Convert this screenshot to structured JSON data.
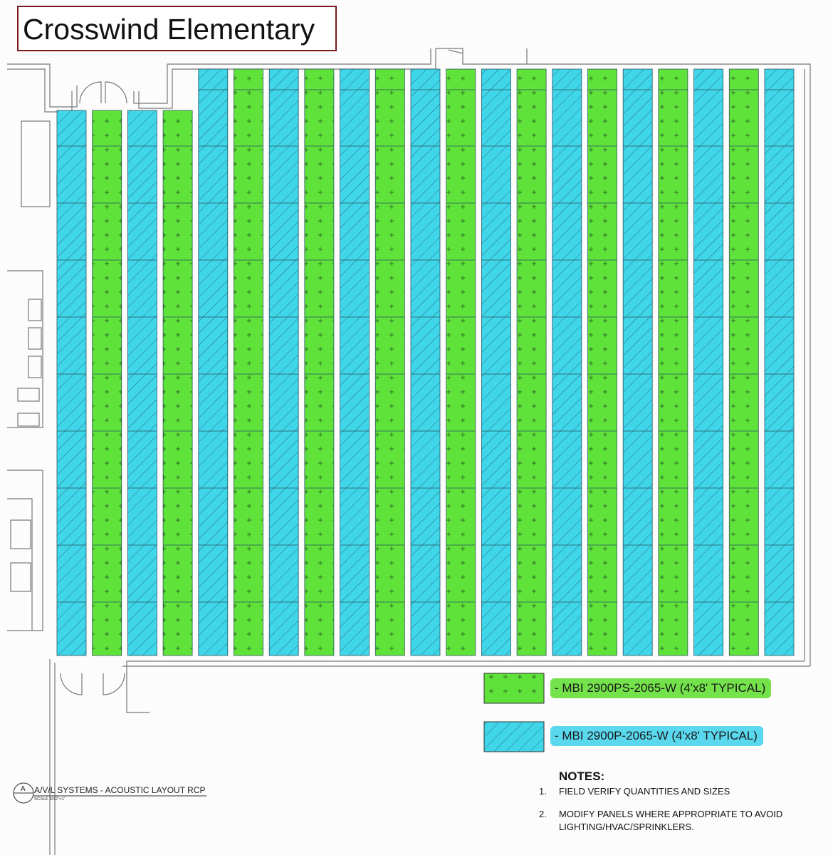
{
  "title": "Crosswind Elementary",
  "colors": {
    "green_panel": "#5fe23a",
    "cyan_panel": "#3fd6ea",
    "green_label_bg": "#74e24a",
    "cyan_label_bg": "#5ad8ee",
    "title_border": "#7a1c1c"
  },
  "legend": [
    {
      "type": "green",
      "label": "- MBI 2900PS-2065-W (4'x8' TYPICAL)",
      "pattern": "plus-dots"
    },
    {
      "type": "cyan",
      "label": "- MBI 2900P-2065-W (4'x8' TYPICAL)",
      "pattern": "diagonal-hatch"
    }
  ],
  "notes": {
    "heading": "NOTES:",
    "items": [
      {
        "num": "1.",
        "text": "FIELD VERIFY QUANTITIES AND SIZES"
      },
      {
        "num": "2.",
        "text": "MODIFY PANELS WHERE APPROPRIATE TO AVOID LIGHTING/HVAC/SPRINKLERS."
      }
    ]
  },
  "sheet": {
    "marker": "A",
    "title": "A/V/L SYSTEMS - ACOUSTIC LAYOUT RCP",
    "scale": "SCALE 3/32\"=1'"
  },
  "panel_columns": [
    "cyan",
    "green",
    "cyan",
    "green",
    "cyan",
    "green",
    "cyan",
    "green",
    "cyan",
    "green",
    "cyan",
    "green",
    "cyan",
    "green",
    "cyan",
    "green",
    "cyan",
    "green",
    "cyan",
    "green",
    "cyan"
  ]
}
